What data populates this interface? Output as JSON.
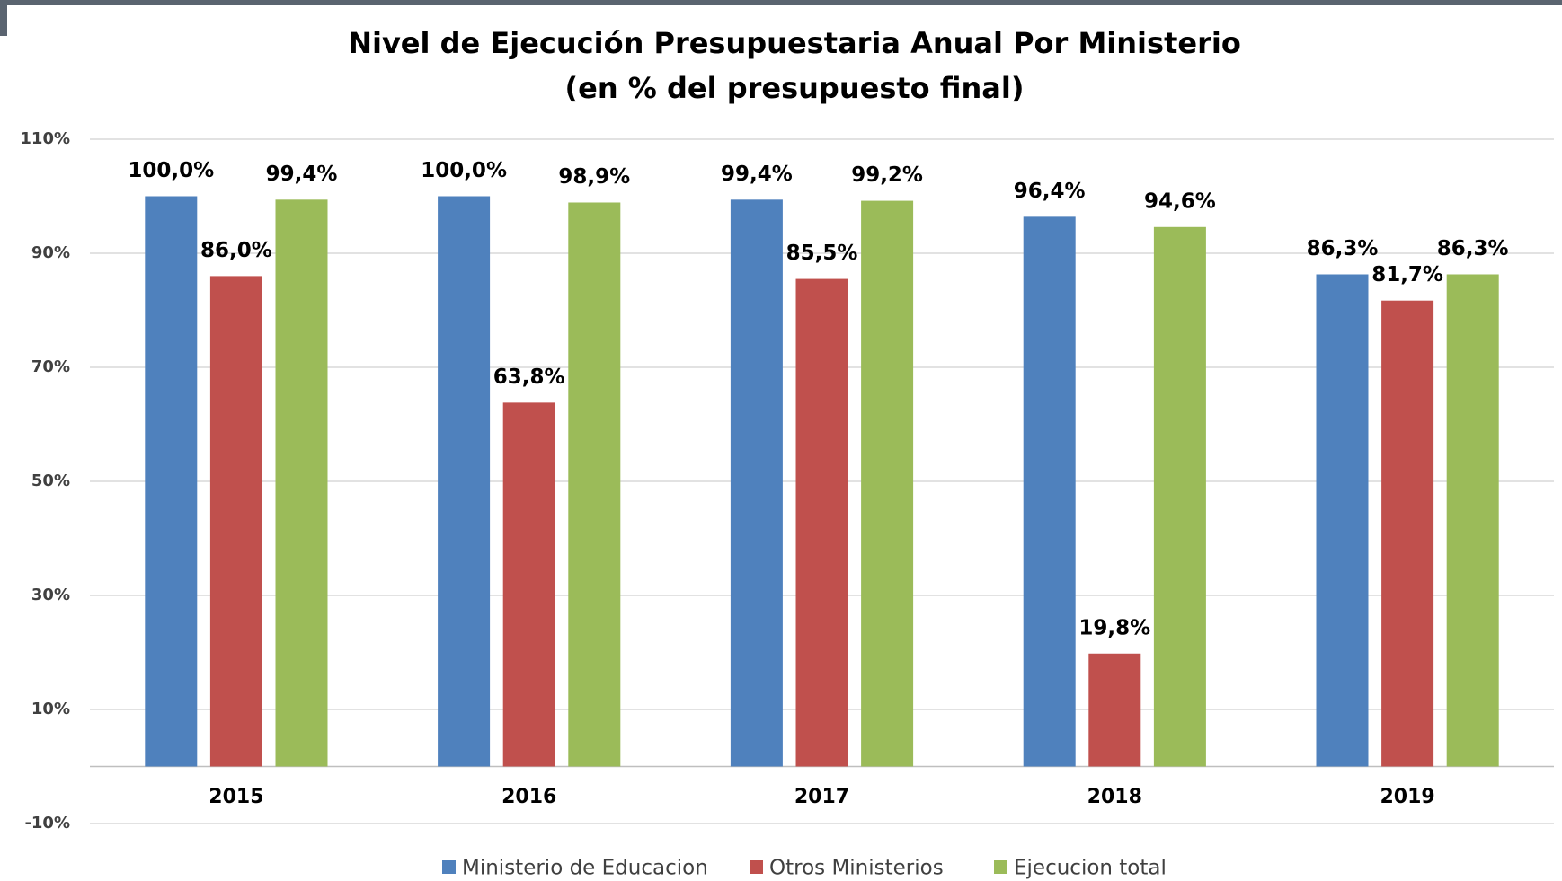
{
  "chart_data": {
    "type": "bar",
    "title": "Nivel de Ejecución Presupuestaria Anual Por Ministerio",
    "subtitle": "(en % del presupuesto final)",
    "categories": [
      "2015",
      "2016",
      "2017",
      "2018",
      "2019"
    ],
    "series": [
      {
        "name": "Ministerio de Educacion",
        "color": "#4f81bd",
        "values": [
          100.0,
          100.0,
          99.4,
          96.4,
          86.3
        ],
        "value_labels": [
          "100,0%",
          "100,0%",
          "99,4%",
          "96,4%",
          "86,3%"
        ]
      },
      {
        "name": "Otros Ministerios",
        "color": "#c0504d",
        "values": [
          86.0,
          63.8,
          85.5,
          19.8,
          81.7
        ],
        "value_labels": [
          "86,0%",
          "63,8%",
          "85,5%",
          "19,8%",
          "81,7%"
        ]
      },
      {
        "name": "Ejecucion total",
        "color": "#9bbb59",
        "values": [
          99.4,
          98.9,
          99.2,
          94.6,
          86.3
        ],
        "value_labels": [
          "99,4%",
          "98,9%",
          "99,2%",
          "94,6%",
          "86,3%"
        ]
      }
    ],
    "ylim": [
      -10,
      110
    ],
    "yticks": [
      {
        "value": -10,
        "label": "-10%"
      },
      {
        "value": 10,
        "label": "10%"
      },
      {
        "value": 30,
        "label": "30%"
      },
      {
        "value": 50,
        "label": "50%"
      },
      {
        "value": 70,
        "label": "70%"
      },
      {
        "value": 90,
        "label": "90%"
      },
      {
        "value": 110,
        "label": "110%"
      }
    ],
    "grid": true,
    "legend": "bottom"
  }
}
